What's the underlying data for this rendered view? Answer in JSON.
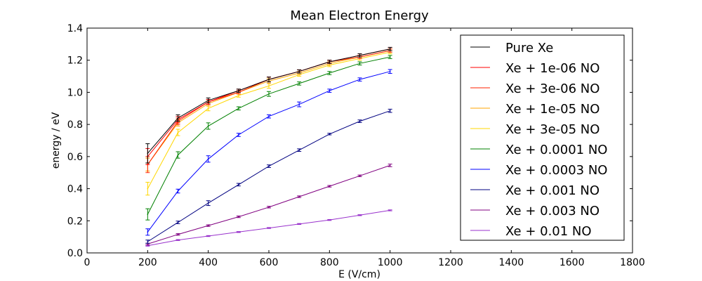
{
  "chart_data": {
    "type": "line",
    "title": "Mean Electron Energy",
    "xlabel": "E (V/cm)",
    "ylabel": "energy / eV",
    "xlim": [
      0,
      1800
    ],
    "ylim": [
      0.0,
      1.4
    ],
    "xticks": [
      0,
      200,
      400,
      600,
      800,
      1000,
      1200,
      1400,
      1600,
      1800
    ],
    "yticks": [
      0.0,
      0.2,
      0.4,
      0.6,
      0.8,
      1.0,
      1.2,
      1.4
    ],
    "xtick_labels": [
      "0",
      "200",
      "400",
      "600",
      "800",
      "1000",
      "1200",
      "1400",
      "1600",
      "1800"
    ],
    "ytick_labels": [
      "0.0",
      "0.2",
      "0.4",
      "0.6",
      "0.8",
      "1.0",
      "1.2",
      "1.4"
    ],
    "grid": false,
    "legend_position": "upper-right",
    "x": [
      200,
      300,
      400,
      500,
      600,
      700,
      800,
      900,
      1000
    ],
    "series": [
      {
        "name": "Pure Xe",
        "color": "#000000",
        "values": [
          0.62,
          0.84,
          0.95,
          1.01,
          1.08,
          1.13,
          1.19,
          1.23,
          1.27
        ],
        "errors": [
          0.06,
          0.02,
          0.015,
          0.01,
          0.015,
          0.01,
          0.01,
          0.01,
          0.01
        ]
      },
      {
        "name": "Xe + 1e-06 NO",
        "color": "#ff0000",
        "values": [
          0.6,
          0.83,
          0.94,
          1.01,
          1.08,
          1.13,
          1.19,
          1.23,
          1.27
        ],
        "errors": [
          0.05,
          0.02,
          0.015,
          0.01,
          0.015,
          0.01,
          0.01,
          0.01,
          0.01
        ]
      },
      {
        "name": "Xe + 3e-06 NO",
        "color": "#ff2200",
        "values": [
          0.55,
          0.82,
          0.94,
          1.0,
          1.08,
          1.13,
          1.19,
          1.22,
          1.26
        ],
        "errors": [
          0.05,
          0.02,
          0.015,
          0.01,
          0.015,
          0.01,
          0.01,
          0.01,
          0.01
        ]
      },
      {
        "name": "Xe + 1e-05 NO",
        "color": "#ffa500",
        "values": [
          0.55,
          0.81,
          0.93,
          1.0,
          1.07,
          1.12,
          1.18,
          1.22,
          1.26
        ],
        "errors": [
          0.04,
          0.02,
          0.015,
          0.01,
          0.015,
          0.01,
          0.01,
          0.01,
          0.01
        ]
      },
      {
        "name": "Xe + 3e-05 NO",
        "color": "#ffd700",
        "values": [
          0.4,
          0.75,
          0.9,
          0.98,
          1.04,
          1.11,
          1.17,
          1.21,
          1.25
        ],
        "errors": [
          0.04,
          0.02,
          0.015,
          0.01,
          0.015,
          0.01,
          0.01,
          0.01,
          0.01
        ]
      },
      {
        "name": "Xe + 0.0001 NO",
        "color": "#008000",
        "values": [
          0.24,
          0.61,
          0.79,
          0.9,
          0.99,
          1.055,
          1.12,
          1.18,
          1.22
        ],
        "errors": [
          0.035,
          0.02,
          0.02,
          0.01,
          0.015,
          0.01,
          0.01,
          0.01,
          0.01
        ]
      },
      {
        "name": "Xe + 0.0003 NO",
        "color": "#0000ff",
        "values": [
          0.13,
          0.385,
          0.585,
          0.735,
          0.85,
          0.925,
          1.01,
          1.08,
          1.13
        ],
        "errors": [
          0.02,
          0.012,
          0.02,
          0.01,
          0.01,
          0.015,
          0.01,
          0.01,
          0.012
        ]
      },
      {
        "name": "Xe + 0.001 NO",
        "color": "#000080",
        "values": [
          0.07,
          0.19,
          0.31,
          0.425,
          0.54,
          0.64,
          0.74,
          0.82,
          0.885
        ],
        "errors": [
          0.01,
          0.008,
          0.015,
          0.008,
          0.008,
          0.008,
          0.005,
          0.008,
          0.01
        ]
      },
      {
        "name": "Xe + 0.003 NO",
        "color": "#800080",
        "values": [
          0.055,
          0.115,
          0.17,
          0.225,
          0.285,
          0.35,
          0.415,
          0.48,
          0.545
        ],
        "errors": [
          0.005,
          0.005,
          0.005,
          0.005,
          0.005,
          0.005,
          0.005,
          0.005,
          0.008
        ]
      },
      {
        "name": "Xe + 0.01 NO",
        "color": "#9932cc",
        "values": [
          0.045,
          0.08,
          0.105,
          0.13,
          0.155,
          0.18,
          0.205,
          0.235,
          0.265
        ],
        "errors": [
          0.003,
          0.003,
          0.003,
          0.003,
          0.003,
          0.003,
          0.003,
          0.003,
          0.003
        ]
      }
    ]
  }
}
